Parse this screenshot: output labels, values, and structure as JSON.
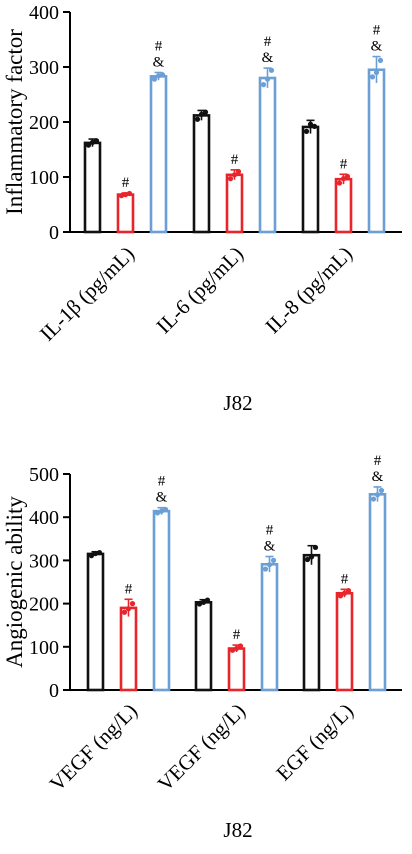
{
  "colors": {
    "control": "#111111",
    "group2": "#e8252b",
    "group3": "#6b9fd6",
    "axis": "#000000"
  },
  "chart_data": [
    {
      "type": "bar",
      "ylabel": "Inflammatory factor",
      "xlabel": "J82",
      "ylim": [
        0,
        400
      ],
      "yticks": [
        "0",
        "100",
        "200",
        "300",
        "400"
      ],
      "categories": [
        "IL-1β (pg/mL)",
        "IL-6 (pg/mL)",
        "IL-8 (pg/mL)"
      ],
      "series": [
        {
          "values": [
            162,
            212,
            191
          ],
          "errors": [
            7,
            9,
            12
          ],
          "marks": [
            "",
            "",
            ""
          ],
          "points": [
            [
              158,
              163,
              166
            ],
            [
              205,
              214,
              218
            ],
            [
              183,
              196,
              192
            ]
          ]
        },
        {
          "values": [
            68,
            104,
            96
          ],
          "errors": [
            3,
            9,
            9
          ],
          "marks": [
            "#",
            "#",
            "#"
          ],
          "points": [
            [
              66,
              68,
              70
            ],
            [
              97,
              104,
              110
            ],
            [
              89,
              97,
              101
            ]
          ]
        },
        {
          "values": [
            283,
            280,
            295
          ],
          "errors": [
            7,
            18,
            24
          ],
          "marks": [
            "#\n&",
            "#\n&",
            "#\n&"
          ],
          "points": [
            [
              278,
              284,
              286
            ],
            [
              268,
              278,
              294
            ],
            [
              282,
              290,
              312
            ]
          ]
        }
      ],
      "legend": "none",
      "grid": false
    },
    {
      "type": "bar",
      "ylabel": "Angiogenic ability",
      "xlabel": "J82",
      "ylim": [
        0,
        500
      ],
      "yticks": [
        "0",
        "100",
        "200",
        "300",
        "400",
        "500"
      ],
      "categories": [
        "VEGF (ng/L)",
        "VEGF (ng/L)",
        "EGF (ng/L)"
      ],
      "series": [
        {
          "values": [
            315,
            203,
            312
          ],
          "errors": [
            5,
            6,
            22
          ],
          "marks": [
            "",
            "",
            ""
          ],
          "points": [
            [
              311,
              316,
              318
            ],
            [
              199,
              203,
              208
            ],
            [
              302,
              308,
              330
            ]
          ]
        },
        {
          "values": [
            190,
            96,
            224
          ],
          "errors": [
            20,
            8,
            9
          ],
          "marks": [
            "#",
            "#",
            "#"
          ],
          "points": [
            [
              180,
              188,
              200
            ],
            [
              92,
              96,
              102
            ],
            [
              218,
              224,
              230
            ]
          ]
        },
        {
          "values": [
            414,
            291,
            453
          ],
          "errors": [
            8,
            18,
            17
          ],
          "marks": [
            "#\n&",
            "#\n&",
            "#\n&"
          ],
          "points": [
            [
              410,
              414,
              418
            ],
            [
              280,
              290,
              300
            ],
            [
              442,
              452,
              462
            ]
          ]
        }
      ],
      "legend": "none",
      "grid": false
    }
  ]
}
